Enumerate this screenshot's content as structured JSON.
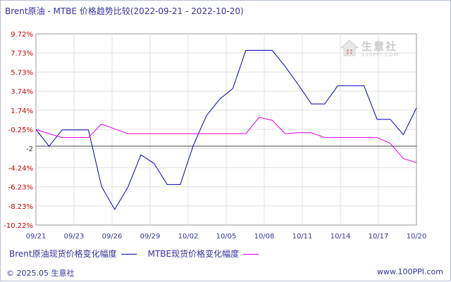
{
  "title": "Brent原油 - MTBE 价格趋势比较(2022-09-21 - 2022-10-20)",
  "footer": {
    "copyright": "© 2025.05 生意社",
    "site": "www.100PPI.com"
  },
  "watermark": {
    "name": "生意社",
    "url": "100PPI.COM"
  },
  "colors": {
    "brent": "#0000aa",
    "mtbe": "#dd00dd",
    "zero_line": "#444444",
    "grid": "#e0e0e0"
  },
  "chart_data": {
    "type": "line",
    "title": "Brent原油 - MTBE 价格趋势比较(2022-09-21 - 2022-10-20)",
    "x_ticks": [
      "09/21",
      "09/23",
      "09/26",
      "09/29",
      "10/02",
      "10/05",
      "10/08",
      "10/11",
      "10/14",
      "10/17",
      "10/20"
    ],
    "y_ticks": [
      "9.72%",
      "7.73%",
      "5.73%",
      "3.74%",
      "1.74%",
      "-0.25%",
      "-2",
      "-4.24%",
      "-6.23%",
      "-8.23%",
      "-10.22%"
    ],
    "ylim": [
      -10.22,
      9.72
    ],
    "series": [
      {
        "name": "Brent原油现货价格变化幅度",
        "color": "#0000aa",
        "values": [
          [
            0,
            -0.25
          ],
          [
            1,
            -2.0
          ],
          [
            2,
            -0.3
          ],
          [
            3,
            -0.3
          ],
          [
            4,
            -0.3
          ],
          [
            5,
            -6.2
          ],
          [
            6,
            -8.6
          ],
          [
            7,
            -6.3
          ],
          [
            8,
            -2.9
          ],
          [
            9,
            -3.8
          ],
          [
            10,
            -6.0
          ],
          [
            11,
            -6.0
          ],
          [
            12,
            -1.9
          ],
          [
            13,
            1.2
          ],
          [
            14,
            2.9
          ],
          [
            15,
            4.0
          ],
          [
            16,
            8.0
          ],
          [
            17,
            8.0
          ],
          [
            18,
            8.0
          ],
          [
            19,
            6.3
          ],
          [
            20,
            4.4
          ],
          [
            21,
            2.4
          ],
          [
            22,
            2.4
          ],
          [
            23,
            4.3
          ],
          [
            24,
            4.3
          ],
          [
            25,
            4.3
          ],
          [
            26,
            0.8
          ],
          [
            27,
            0.8
          ],
          [
            28,
            -0.8
          ],
          [
            29,
            2.0
          ]
        ]
      },
      {
        "name": "MTBE现货价格变化幅度",
        "color": "#dd00dd",
        "values": [
          [
            0,
            -0.25
          ],
          [
            1,
            -0.7
          ],
          [
            2,
            -1.1
          ],
          [
            3,
            -1.1
          ],
          [
            4,
            -1.1
          ],
          [
            5,
            0.3
          ],
          [
            6,
            -0.2
          ],
          [
            7,
            -0.7
          ],
          [
            8,
            -0.7
          ],
          [
            9,
            -0.7
          ],
          [
            10,
            -0.7
          ],
          [
            11,
            -0.7
          ],
          [
            12,
            -0.7
          ],
          [
            13,
            -0.7
          ],
          [
            14,
            -0.7
          ],
          [
            15,
            -0.7
          ],
          [
            16,
            -0.7
          ],
          [
            17,
            1.0
          ],
          [
            18,
            0.7
          ],
          [
            19,
            -0.7
          ],
          [
            20,
            -0.6
          ],
          [
            21,
            -0.6
          ],
          [
            22,
            -1.1
          ],
          [
            23,
            -1.1
          ],
          [
            24,
            -1.1
          ],
          [
            25,
            -1.1
          ],
          [
            26,
            -1.1
          ],
          [
            27,
            -1.7
          ],
          [
            28,
            -3.3
          ],
          [
            29,
            -3.7
          ],
          [
            30,
            -4.4
          ]
        ]
      }
    ],
    "x_range": [
      0,
      29
    ],
    "mtbe_x_range": [
      0,
      30
    ],
    "zero_reference": -2,
    "grid": true,
    "legend_position": "bottom-left"
  }
}
